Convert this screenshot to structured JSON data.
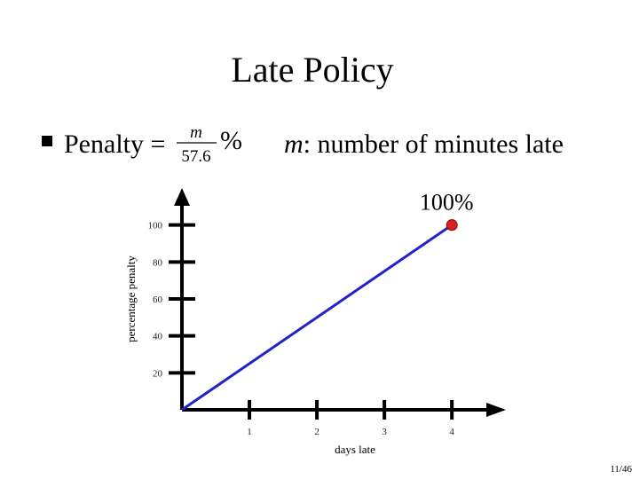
{
  "title": "Late Policy",
  "bullet": {
    "lead": "Penalty =",
    "numerator": "m",
    "denominator": "57.6",
    "unit": "%",
    "note_var": "m",
    "note": ": number of minutes late"
  },
  "page_number": "11/46",
  "chart_data": {
    "type": "line",
    "x": [
      0,
      4
    ],
    "values": [
      0,
      100
    ],
    "color": "#2222cc",
    "point_color": "#dd2222",
    "annotation": "100%",
    "xlabel": "days late",
    "ylabel": "percentage penalty",
    "xlim": [
      0,
      4.8
    ],
    "ylim": [
      0,
      120
    ],
    "xticks": [
      1,
      2,
      3,
      4
    ],
    "yticks": [
      20,
      40,
      60,
      80,
      100
    ]
  }
}
